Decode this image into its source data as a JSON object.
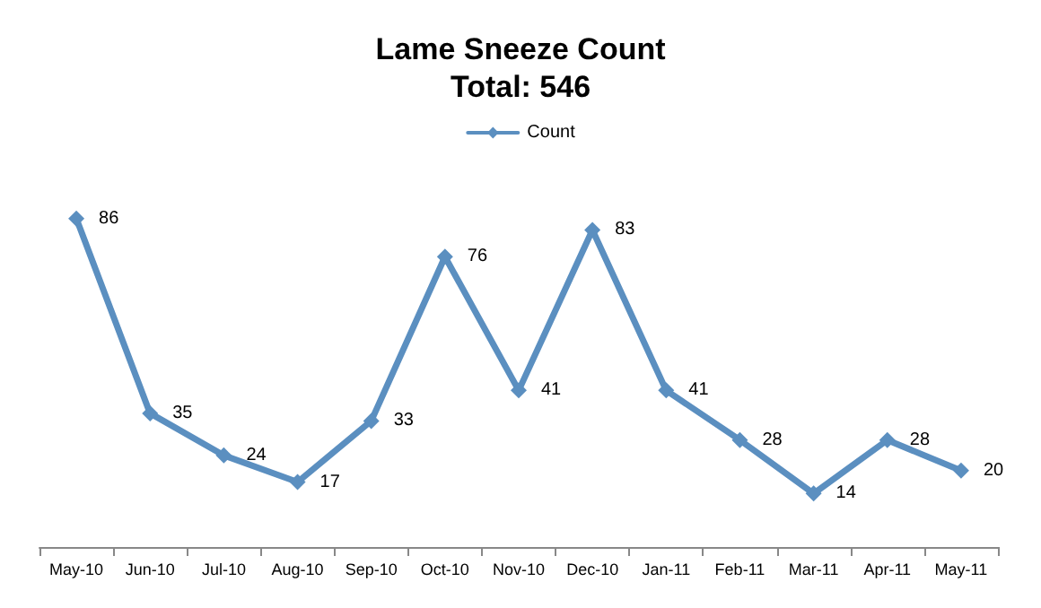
{
  "chart_data": {
    "type": "line",
    "title": "Lame Sneeze Count",
    "subtitle": "Total: 546",
    "categories": [
      "May-10",
      "Jun-10",
      "Jul-10",
      "Aug-10",
      "Sep-10",
      "Oct-10",
      "Nov-10",
      "Dec-10",
      "Jan-11",
      "Feb-11",
      "Mar-11",
      "Apr-11",
      "May-11"
    ],
    "series": [
      {
        "name": "Count",
        "color": "#5b8fc0",
        "values": [
          86,
          35,
          24,
          17,
          33,
          76,
          41,
          83,
          41,
          28,
          14,
          28,
          20
        ]
      }
    ],
    "data_labels": true,
    "legend": "top",
    "marker": "diamond",
    "grid": false
  }
}
